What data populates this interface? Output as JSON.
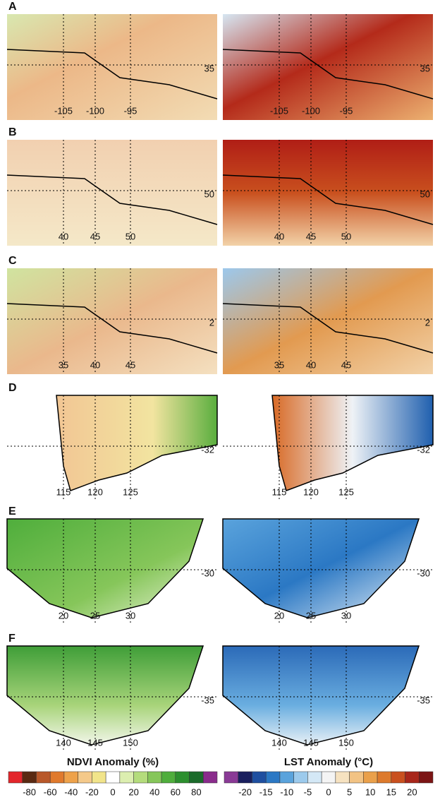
{
  "panels": [
    {
      "label": "A",
      "lon_labels": [
        "-105",
        "-100",
        "-95"
      ],
      "lat_label": "35"
    },
    {
      "label": "B",
      "lon_labels": [
        "40",
        "45",
        "50"
      ],
      "lat_label": "50"
    },
    {
      "label": "C",
      "lon_labels": [
        "35",
        "40",
        "45"
      ],
      "lat_label": "2"
    },
    {
      "label": "D",
      "lon_labels": [
        "115",
        "120",
        "125"
      ],
      "lat_label": "-32"
    },
    {
      "label": "E",
      "lon_labels": [
        "20",
        "25",
        "30"
      ],
      "lat_label": "-30"
    },
    {
      "label": "F",
      "lon_labels": [
        "140",
        "145",
        "150"
      ],
      "lat_label": "-35"
    }
  ],
  "colorbars": [
    {
      "title": "NDVI Anomaly (%)",
      "ticks": [
        -80,
        -60,
        -40,
        -20,
        0,
        20,
        40,
        60,
        80
      ],
      "colors": [
        "#e3262b",
        "#5a2a12",
        "#b8582a",
        "#e07a2c",
        "#eea24a",
        "#f4c98a",
        "#f1e48a",
        "#ffffff",
        "#dceeb0",
        "#b4dc7c",
        "#86c65a",
        "#4fae3c",
        "#2c8f2e",
        "#1a6b2a",
        "#8a2c8c"
      ]
    },
    {
      "title": "LST Anomaly (°C)",
      "ticks": [
        -20,
        -15,
        -10,
        -5,
        0,
        5,
        10,
        15,
        20
      ],
      "colors": [
        "#8a3a96",
        "#1a1f5e",
        "#1f4fa0",
        "#2b78c4",
        "#5aa3dc",
        "#9ccaec",
        "#d4e8f6",
        "#f4f4f4",
        "#f6e2c0",
        "#f2c384",
        "#eaa04a",
        "#dd7a2c",
        "#c9501e",
        "#a8261a",
        "#7c1414"
      ]
    }
  ]
}
